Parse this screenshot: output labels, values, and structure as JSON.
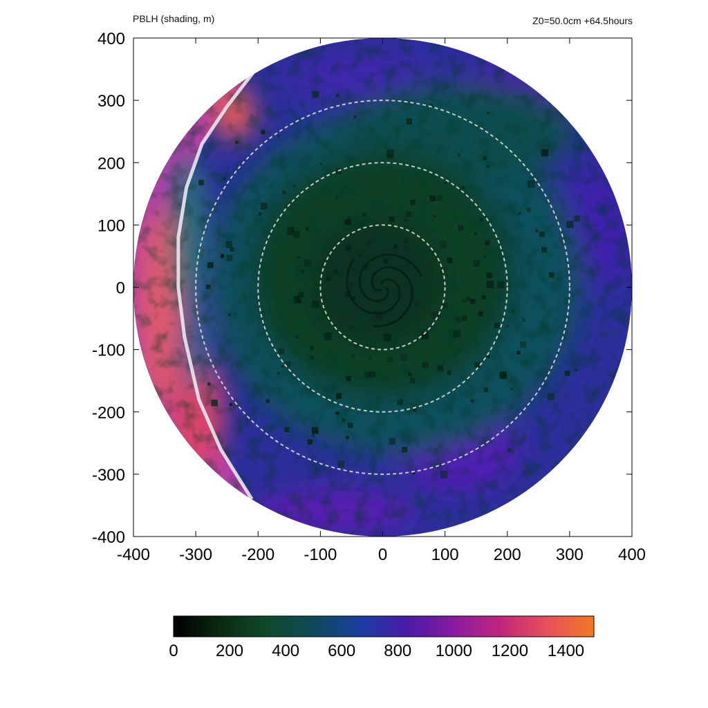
{
  "header": {
    "left": "PBLH (shading, m)",
    "right": "Z0=50.0cm  +64.5hours"
  },
  "chart_data": {
    "type": "heatmap",
    "title": "PBLH (shading, m)",
    "subtitle": "Z0=50.0cm  +64.5hours",
    "xlabel": "",
    "ylabel": "",
    "xlim": [
      -400,
      400
    ],
    "ylim": [
      -400,
      400
    ],
    "xticks": [
      -400,
      -300,
      -200,
      -100,
      0,
      100,
      200,
      300,
      400
    ],
    "yticks": [
      -400,
      -300,
      -200,
      -100,
      0,
      100,
      200,
      300,
      400
    ],
    "domain_radius": 400,
    "grid": false,
    "reference_circles_radius": [
      100,
      200,
      300
    ],
    "front_line": [
      [
        -205,
        348
      ],
      [
        -250,
        290
      ],
      [
        -290,
        230
      ],
      [
        -315,
        160
      ],
      [
        -328,
        80
      ],
      [
        -328,
        0
      ],
      [
        -318,
        -80
      ],
      [
        -295,
        -180
      ],
      [
        -260,
        -260
      ],
      [
        -210,
        -340
      ]
    ],
    "field_description": "PBLH ~400-600 m in vortex core, ~700-1000 m in outer rain bands, 1000-1400 m west of front",
    "colorbar": {
      "min": 0,
      "max": 1500,
      "ticks": [
        0,
        200,
        400,
        600,
        800,
        1000,
        1200,
        1400
      ],
      "placement": "bottom",
      "colors": [
        "#000000",
        "#0b2a10",
        "#0f4a2a",
        "#0d4a5a",
        "#1a3ea0",
        "#4a1aa8",
        "#8a1aa0",
        "#c0267a",
        "#e8505a",
        "#f07820"
      ]
    }
  }
}
